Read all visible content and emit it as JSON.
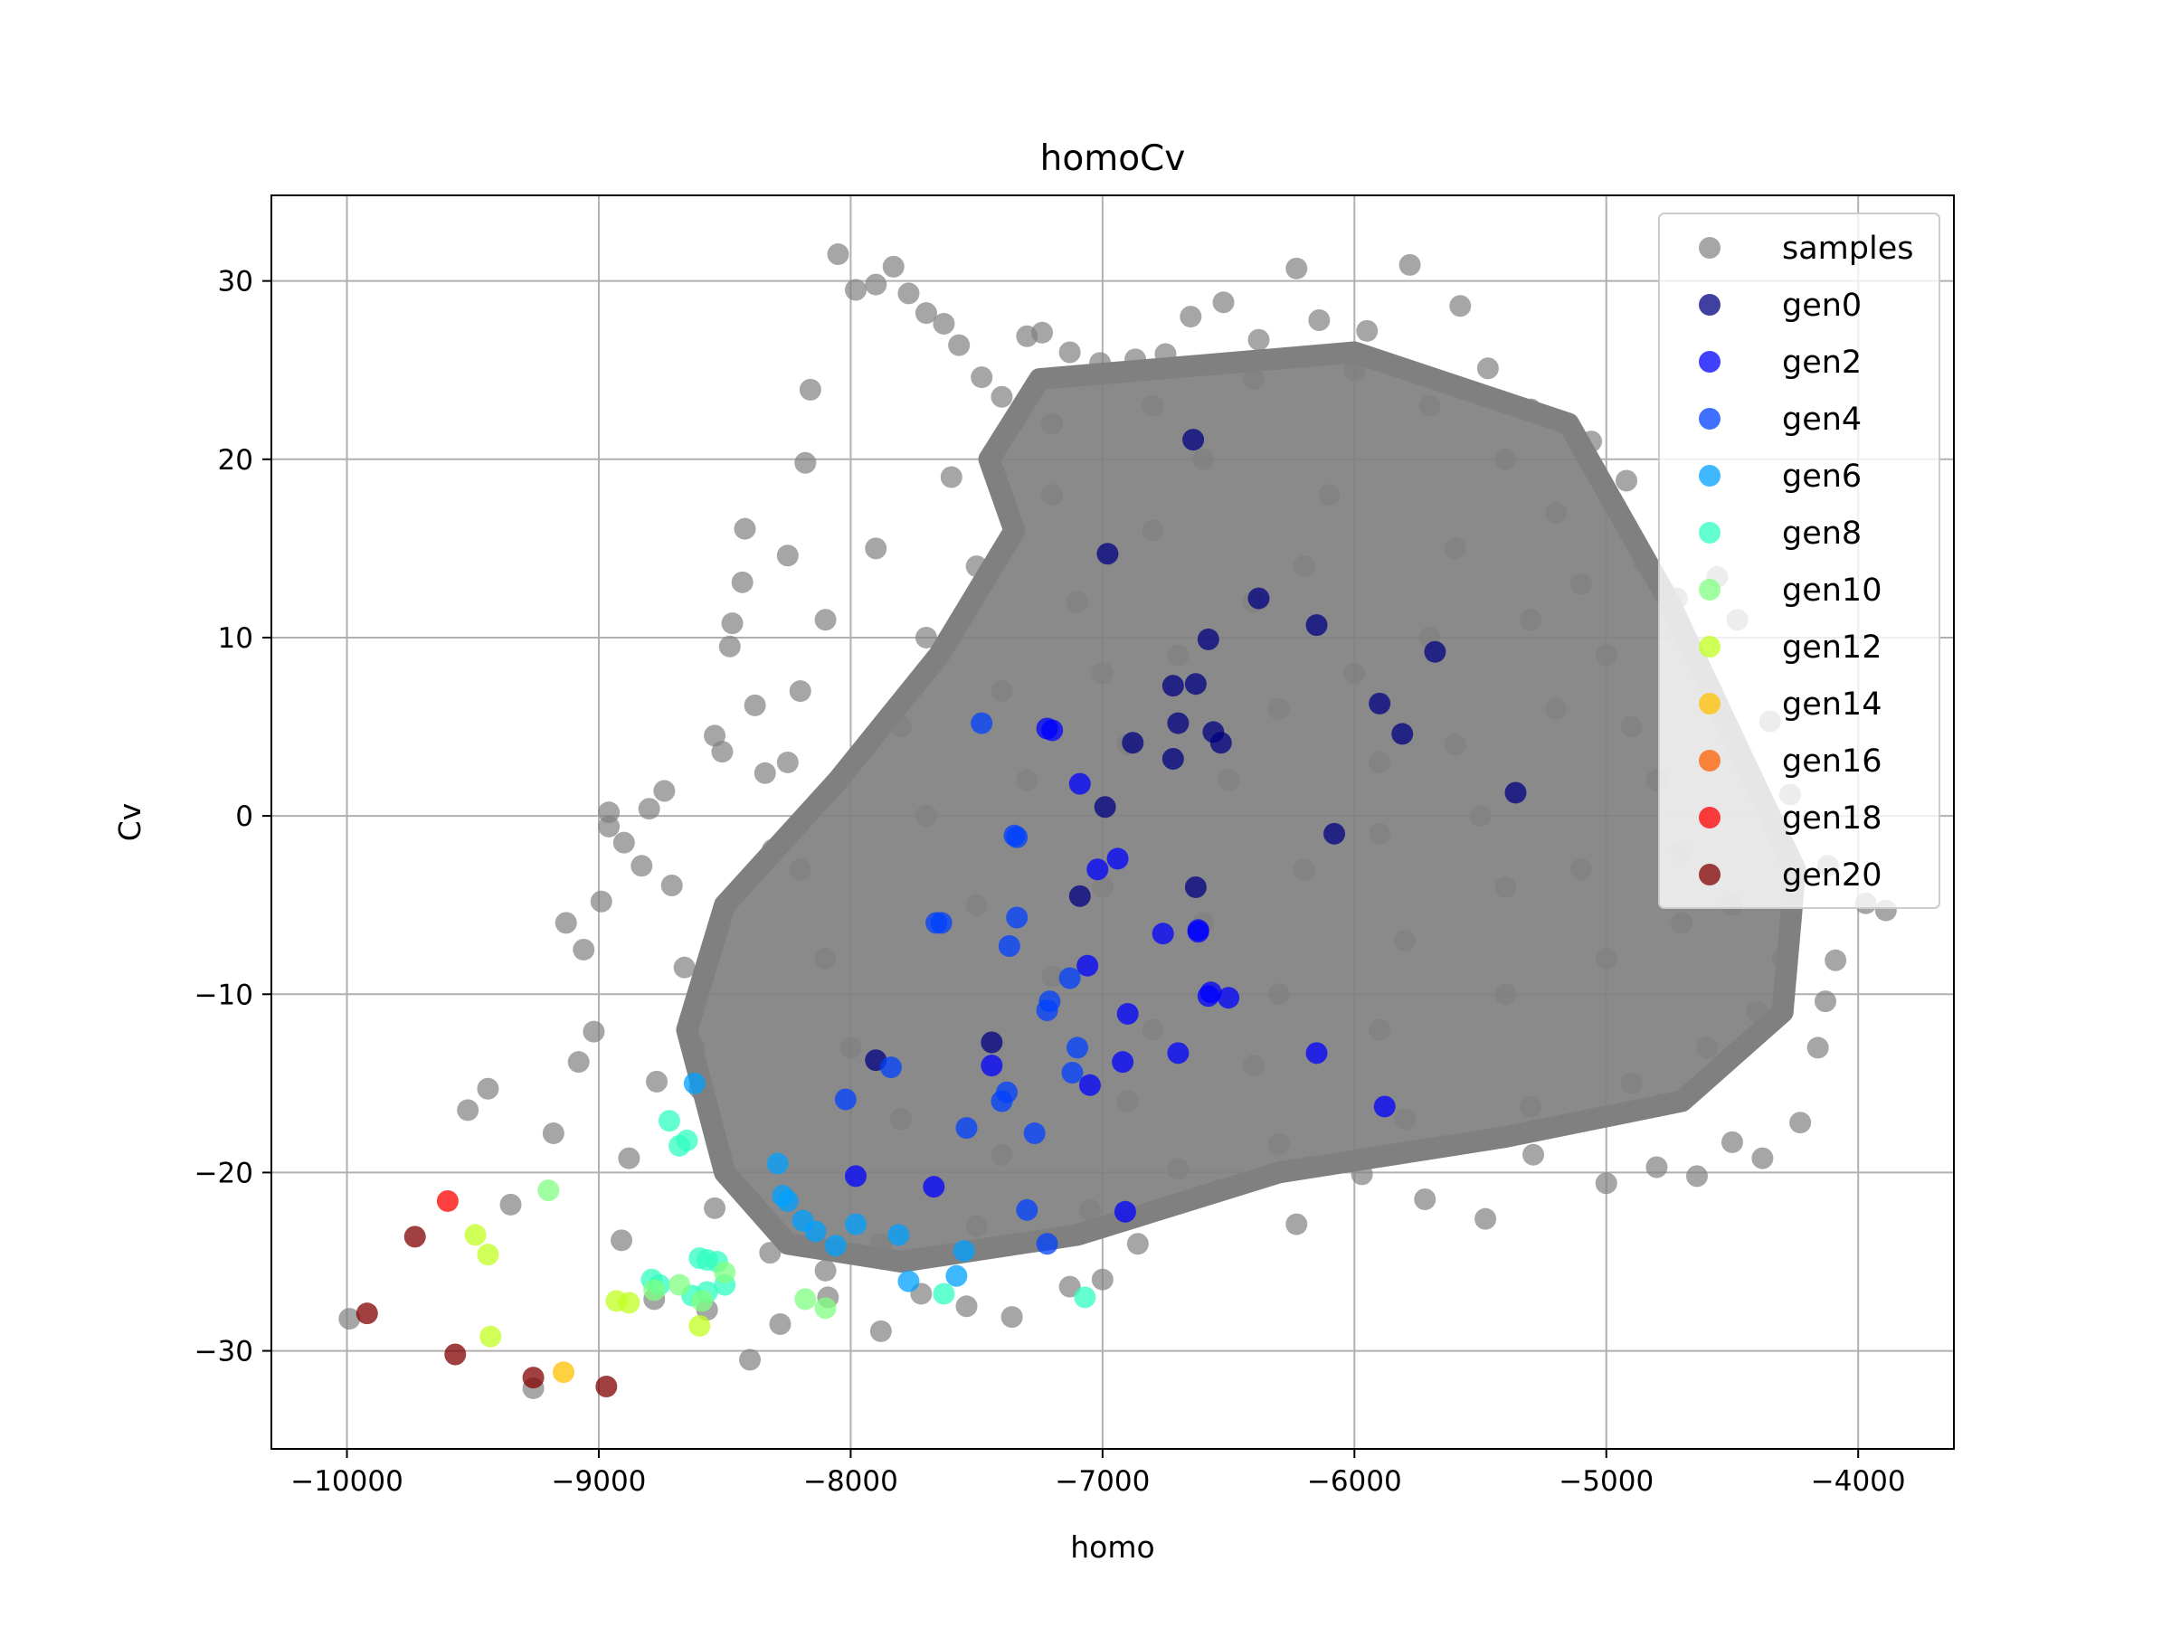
{
  "chart_data": {
    "type": "scatter",
    "title": "homoCv",
    "xlabel": "homo",
    "ylabel": "Cv",
    "xlim": [
      -10300,
      -3620
    ],
    "ylim": [
      -35.5,
      34.8
    ],
    "xticks": [
      -10000,
      -9000,
      -8000,
      -7000,
      -6000,
      -5000,
      -4000
    ],
    "xtick_labels": [
      "−10000",
      "−9000",
      "−8000",
      "−7000",
      "−6000",
      "−5000",
      "−4000"
    ],
    "yticks": [
      -30,
      -20,
      -10,
      0,
      10,
      20,
      30
    ],
    "ytick_labels": [
      "−30",
      "−20",
      "−10",
      "0",
      "10",
      "20",
      "30"
    ],
    "grid": true,
    "legend_position": "top-right",
    "series": [
      {
        "name": "samples",
        "color": "#808080",
        "opacity": 0.7,
        "description": "dense cloud of gray sample points",
        "points": [
          [
            -9990,
            -28.2
          ],
          [
            -9260,
            -32.1
          ],
          [
            -9520,
            -16.5
          ],
          [
            -9440,
            -15.3
          ],
          [
            -9350,
            -21.8
          ],
          [
            -9180,
            -17.8
          ],
          [
            -9080,
            -13.8
          ],
          [
            -9020,
            -12.1
          ],
          [
            -9060,
            -7.5
          ],
          [
            -9130,
            -6.0
          ],
          [
            -8990,
            -4.8
          ],
          [
            -8960,
            -0.6
          ],
          [
            -8960,
            0.2
          ],
          [
            -8900,
            -1.5
          ],
          [
            -8830,
            -2.8
          ],
          [
            -8800,
            0.4
          ],
          [
            -8740,
            1.4
          ],
          [
            -8710,
            -3.9
          ],
          [
            -8660,
            -8.5
          ],
          [
            -8620,
            -13.0
          ],
          [
            -8600,
            -15.3
          ],
          [
            -8540,
            4.5
          ],
          [
            -8510,
            3.6
          ],
          [
            -8480,
            9.5
          ],
          [
            -8420,
            16.1
          ],
          [
            -8430,
            13.1
          ],
          [
            -8470,
            10.8
          ],
          [
            -8380,
            6.2
          ],
          [
            -8340,
            2.4
          ],
          [
            -8310,
            -1.9
          ],
          [
            -8250,
            14.6
          ],
          [
            -8180,
            19.8
          ],
          [
            -8160,
            23.9
          ],
          [
            -8050,
            31.5
          ],
          [
            -7980,
            29.5
          ],
          [
            -7900,
            29.8
          ],
          [
            -7830,
            30.8
          ],
          [
            -7770,
            29.3
          ],
          [
            -7700,
            28.2
          ],
          [
            -7630,
            27.6
          ],
          [
            -7570,
            26.4
          ],
          [
            -7480,
            24.6
          ],
          [
            -7400,
            23.5
          ],
          [
            -7300,
            26.9
          ],
          [
            -7240,
            27.1
          ],
          [
            -7130,
            26.0
          ],
          [
            -7010,
            25.4
          ],
          [
            -6870,
            25.6
          ],
          [
            -6750,
            25.9
          ],
          [
            -6650,
            28.0
          ],
          [
            -6520,
            28.8
          ],
          [
            -6380,
            26.7
          ],
          [
            -6230,
            30.7
          ],
          [
            -6140,
            27.8
          ],
          [
            -5950,
            27.2
          ],
          [
            -5780,
            30.9
          ],
          [
            -5580,
            28.6
          ],
          [
            -5470,
            25.1
          ],
          [
            -5300,
            22.8
          ],
          [
            -5060,
            21.0
          ],
          [
            -4920,
            18.8
          ],
          [
            -4850,
            14.2
          ],
          [
            -4720,
            12.2
          ],
          [
            -4560,
            13.4
          ],
          [
            -4480,
            11.0
          ],
          [
            -4350,
            5.3
          ],
          [
            -4270,
            1.2
          ],
          [
            -4120,
            -2.8
          ],
          [
            -3970,
            -4.9
          ],
          [
            -3890,
            -5.3
          ],
          [
            -4090,
            -8.1
          ],
          [
            -4130,
            -10.4
          ],
          [
            -4160,
            -13.0
          ],
          [
            -4230,
            -17.2
          ],
          [
            -4380,
            -19.2
          ],
          [
            -4500,
            -18.3
          ],
          [
            -4640,
            -20.2
          ],
          [
            -4800,
            -19.7
          ],
          [
            -5000,
            -20.6
          ],
          [
            -5290,
            -19.0
          ],
          [
            -5480,
            -22.6
          ],
          [
            -5720,
            -21.5
          ],
          [
            -5970,
            -20.1
          ],
          [
            -6230,
            -22.9
          ],
          [
            -6540,
            -21.0
          ],
          [
            -6860,
            -24.0
          ],
          [
            -7000,
            -26.0
          ],
          [
            -7130,
            -26.4
          ],
          [
            -7360,
            -28.1
          ],
          [
            -7540,
            -27.5
          ],
          [
            -7720,
            -26.8
          ],
          [
            -7880,
            -28.9
          ],
          [
            -8090,
            -27.0
          ],
          [
            -8280,
            -28.5
          ],
          [
            -8400,
            -30.5
          ],
          [
            -8570,
            -27.7
          ],
          [
            -8780,
            -27.1
          ],
          [
            -8910,
            -23.8
          ],
          [
            -8880,
            -19.2
          ],
          [
            -8770,
            -14.9
          ],
          [
            -8540,
            -22.0
          ],
          [
            -8320,
            -24.5
          ],
          [
            -8100,
            -25.5
          ],
          [
            -7880,
            -24.0
          ],
          [
            -7500,
            -23.0
          ],
          [
            -7050,
            -22.1
          ],
          [
            -6700,
            -19.8
          ],
          [
            -6300,
            -18.4
          ],
          [
            -5800,
            -17.0
          ],
          [
            -5300,
            -16.3
          ],
          [
            -4900,
            -15.0
          ],
          [
            -4600,
            -13.0
          ],
          [
            -4400,
            -11.0
          ],
          [
            -4300,
            -8.0
          ],
          [
            -4500,
            -5.0
          ],
          [
            -4700,
            -2.0
          ],
          [
            -4800,
            2.0
          ],
          [
            -4900,
            5.0
          ],
          [
            -5000,
            9.0
          ],
          [
            -5100,
            13.0
          ],
          [
            -5200,
            17.0
          ],
          [
            -5400,
            20.0
          ],
          [
            -5700,
            23.0
          ],
          [
            -6000,
            25.0
          ],
          [
            -6400,
            24.5
          ],
          [
            -6800,
            23.0
          ],
          [
            -7200,
            22.0
          ],
          [
            -7600,
            19.0
          ],
          [
            -7900,
            15.0
          ],
          [
            -8100,
            11.0
          ],
          [
            -8200,
            7.0
          ],
          [
            -8250,
            3.0
          ],
          [
            -8200,
            -3.0
          ],
          [
            -8100,
            -8.0
          ],
          [
            -8000,
            -13.0
          ],
          [
            -7800,
            -17.0
          ],
          [
            -7400,
            -19.0
          ],
          [
            -6900,
            -16.0
          ],
          [
            -6400,
            -14.0
          ],
          [
            -5900,
            -12.0
          ],
          [
            -5400,
            -10.0
          ],
          [
            -5000,
            -8.0
          ],
          [
            -4700,
            -6.0
          ],
          [
            -5100,
            -3.0
          ],
          [
            -5500,
            0.0
          ],
          [
            -5900,
            3.0
          ],
          [
            -6300,
            6.0
          ],
          [
            -6700,
            9.0
          ],
          [
            -7100,
            12.0
          ],
          [
            -7500,
            14.0
          ],
          [
            -7700,
            10.0
          ],
          [
            -7800,
            5.0
          ],
          [
            -7700,
            0.0
          ],
          [
            -7500,
            -5.0
          ],
          [
            -7200,
            -9.0
          ],
          [
            -6800,
            -12.0
          ],
          [
            -6300,
            -10.0
          ],
          [
            -5800,
            -7.0
          ],
          [
            -5400,
            -4.0
          ],
          [
            -5600,
            4.0
          ],
          [
            -6000,
            8.0
          ],
          [
            -6400,
            12.0
          ],
          [
            -6800,
            16.0
          ],
          [
            -7200,
            18.0
          ],
          [
            -6600,
            20.0
          ],
          [
            -6100,
            18.0
          ],
          [
            -5600,
            15.0
          ],
          [
            -5300,
            11.0
          ],
          [
            -5200,
            6.0
          ],
          [
            -5700,
            10.0
          ],
          [
            -6200,
            14.0
          ],
          [
            -6900,
            4.0
          ],
          [
            -7300,
            2.0
          ],
          [
            -7000,
            -4.0
          ],
          [
            -6600,
            -6.0
          ],
          [
            -6200,
            -3.0
          ],
          [
            -5900,
            -1.0
          ],
          [
            -6500,
            2.0
          ],
          [
            -7400,
            7.0
          ],
          [
            -7000,
            8.0
          ]
        ]
      },
      {
        "name": "gen0",
        "color": "#000080",
        "opacity": 0.75,
        "points": [
          [
            -6640,
            21.1
          ],
          [
            -6980,
            14.7
          ],
          [
            -6380,
            12.2
          ],
          [
            -6150,
            10.7
          ],
          [
            -5680,
            9.2
          ],
          [
            -6580,
            9.9
          ],
          [
            -6720,
            7.3
          ],
          [
            -6630,
            7.4
          ],
          [
            -5900,
            6.3
          ],
          [
            -5810,
            4.6
          ],
          [
            -6700,
            5.2
          ],
          [
            -6560,
            4.7
          ],
          [
            -6530,
            4.1
          ],
          [
            -6880,
            4.1
          ],
          [
            -6720,
            3.2
          ],
          [
            -5360,
            1.3
          ],
          [
            -6990,
            0.5
          ],
          [
            -6080,
            -1.0
          ],
          [
            -6630,
            -4.0
          ],
          [
            -7090,
            -4.5
          ],
          [
            -7440,
            -12.7
          ],
          [
            -7900,
            -13.7
          ]
        ]
      },
      {
        "name": "gen2",
        "color": "#0000ff",
        "opacity": 0.75,
        "points": [
          [
            -7220,
            4.9
          ],
          [
            -7200,
            4.8
          ],
          [
            -7090,
            1.8
          ],
          [
            -7020,
            -3.0
          ],
          [
            -6940,
            -2.4
          ],
          [
            -6620,
            -6.4
          ],
          [
            -6620,
            -6.5
          ],
          [
            -6760,
            -6.6
          ],
          [
            -7060,
            -8.4
          ],
          [
            -6570,
            -9.9
          ],
          [
            -6500,
            -10.2
          ],
          [
            -6580,
            -10.1
          ],
          [
            -6900,
            -11.1
          ],
          [
            -6700,
            -13.3
          ],
          [
            -6150,
            -13.3
          ],
          [
            -6920,
            -13.8
          ],
          [
            -5880,
            -16.3
          ],
          [
            -7440,
            -14.0
          ],
          [
            -7050,
            -15.1
          ],
          [
            -7670,
            -20.8
          ],
          [
            -7980,
            -20.2
          ],
          [
            -6910,
            -22.2
          ]
        ]
      },
      {
        "name": "gen4",
        "color": "#0040ff",
        "opacity": 0.75,
        "points": [
          [
            -7480,
            5.2
          ],
          [
            -7350,
            -1.1
          ],
          [
            -7340,
            -1.2
          ],
          [
            -7660,
            -6.0
          ],
          [
            -7640,
            -6.0
          ],
          [
            -7340,
            -5.7
          ],
          [
            -7370,
            -7.3
          ],
          [
            -7130,
            -9.1
          ],
          [
            -7210,
            -10.4
          ],
          [
            -7220,
            -10.9
          ],
          [
            -7100,
            -13.0
          ],
          [
            -7120,
            -14.4
          ],
          [
            -7400,
            -16.0
          ],
          [
            -7380,
            -15.5
          ],
          [
            -7270,
            -17.8
          ],
          [
            -7540,
            -17.5
          ],
          [
            -8020,
            -15.9
          ],
          [
            -7840,
            -14.1
          ],
          [
            -7300,
            -22.1
          ],
          [
            -7220,
            -24.0
          ]
        ]
      },
      {
        "name": "gen6",
        "color": "#00a0ff",
        "opacity": 0.75,
        "points": [
          [
            -8620,
            -15.0
          ],
          [
            -8290,
            -19.5
          ],
          [
            -8270,
            -21.3
          ],
          [
            -8250,
            -21.6
          ],
          [
            -8190,
            -22.7
          ],
          [
            -8140,
            -23.3
          ],
          [
            -8060,
            -24.1
          ],
          [
            -7980,
            -22.9
          ],
          [
            -7810,
            -23.5
          ],
          [
            -7550,
            -24.4
          ],
          [
            -7580,
            -25.8
          ],
          [
            -7770,
            -26.1
          ]
        ]
      },
      {
        "name": "gen8",
        "color": "#30ffc0",
        "opacity": 0.75,
        "points": [
          [
            -8720,
            -17.1
          ],
          [
            -8680,
            -18.5
          ],
          [
            -8650,
            -18.2
          ],
          [
            -8600,
            -24.8
          ],
          [
            -8570,
            -24.9
          ],
          [
            -8530,
            -25.0
          ],
          [
            -8500,
            -26.3
          ],
          [
            -8570,
            -26.7
          ],
          [
            -8630,
            -26.9
          ],
          [
            -7630,
            -26.8
          ],
          [
            -7070,
            -27.0
          ],
          [
            -8760,
            -26.3
          ],
          [
            -8790,
            -26.0
          ]
        ]
      },
      {
        "name": "gen10",
        "color": "#80ff80",
        "opacity": 0.75,
        "points": [
          [
            -9200,
            -21.0
          ],
          [
            -8780,
            -26.6
          ],
          [
            -8680,
            -26.3
          ],
          [
            -8590,
            -27.2
          ],
          [
            -8500,
            -25.6
          ],
          [
            -8180,
            -27.1
          ],
          [
            -8100,
            -27.6
          ]
        ]
      },
      {
        "name": "gen12",
        "color": "#c0ff20",
        "opacity": 0.75,
        "points": [
          [
            -9490,
            -23.5
          ],
          [
            -9440,
            -24.6
          ],
          [
            -9430,
            -29.2
          ],
          [
            -8930,
            -27.2
          ],
          [
            -8880,
            -27.3
          ],
          [
            -8600,
            -28.6
          ]
        ]
      },
      {
        "name": "gen14",
        "color": "#ffc000",
        "opacity": 0.75,
        "points": [
          [
            -9140,
            -31.2
          ]
        ]
      },
      {
        "name": "gen16",
        "color": "#ff6000",
        "opacity": 0.75,
        "points": []
      },
      {
        "name": "gen18",
        "color": "#ff0000",
        "opacity": 0.75,
        "points": [
          [
            -9600,
            -21.6
          ]
        ]
      },
      {
        "name": "gen20",
        "color": "#800000",
        "opacity": 0.75,
        "points": [
          [
            -9730,
            -23.6
          ],
          [
            -9920,
            -27.9
          ],
          [
            -9570,
            -30.2
          ],
          [
            -9260,
            -31.5
          ],
          [
            -8970,
            -32.0
          ]
        ]
      }
    ]
  }
}
